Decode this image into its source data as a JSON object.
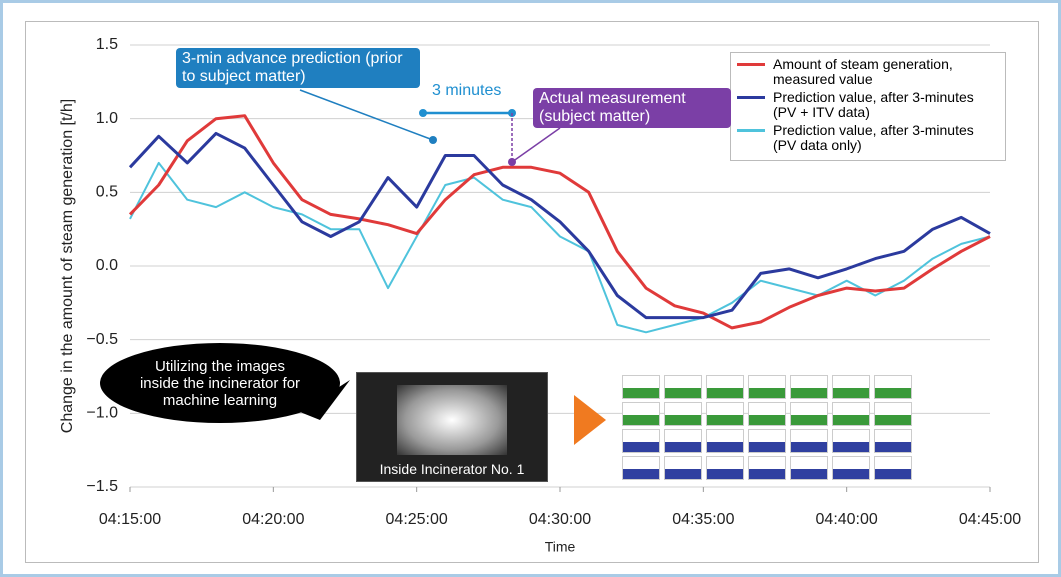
{
  "chart_data": {
    "type": "line",
    "y_label": "Change in the amount of steam generation [t/h]",
    "x_label": "Time",
    "x": [
      "04:15:00",
      "04:16:00",
      "04:17:00",
      "04:18:00",
      "04:19:00",
      "04:20:00",
      "04:21:00",
      "04:22:00",
      "04:23:00",
      "04:24:00",
      "04:25:00",
      "04:26:00",
      "04:27:00",
      "04:28:00",
      "04:29:00",
      "04:30:00",
      "04:31:00",
      "04:32:00",
      "04:33:00",
      "04:34:00",
      "04:35:00",
      "04:36:00",
      "04:37:00",
      "04:38:00",
      "04:39:00",
      "04:40:00",
      "04:41:00",
      "04:42:00",
      "04:43:00",
      "04:44:00",
      "04:45:00"
    ],
    "series": [
      {
        "name": "Amount of steam generation, measured value",
        "color": "#e03a3a",
        "values": [
          0.35,
          0.55,
          0.85,
          1.0,
          1.02,
          0.7,
          0.45,
          0.35,
          0.32,
          0.28,
          0.22,
          0.45,
          0.62,
          0.67,
          0.67,
          0.63,
          0.5,
          0.1,
          -0.15,
          -0.27,
          -0.32,
          -0.42,
          -0.38,
          -0.28,
          -0.2,
          -0.15,
          -0.17,
          -0.15,
          -0.02,
          0.1,
          0.2
        ]
      },
      {
        "name": "Prediction value, after 3-minutes (PV + ITV data)",
        "color": "#2b3a9e",
        "values": [
          0.67,
          0.88,
          0.7,
          0.9,
          0.8,
          0.55,
          0.3,
          0.2,
          0.3,
          0.6,
          0.4,
          0.75,
          0.75,
          0.55,
          0.45,
          0.3,
          0.1,
          -0.2,
          -0.35,
          -0.35,
          -0.35,
          -0.3,
          -0.05,
          -0.02,
          -0.08,
          -0.02,
          0.05,
          0.1,
          0.25,
          0.33,
          0.22
        ]
      },
      {
        "name": "Prediction value, after 3-minutes (PV data only)",
        "color": "#4fc3dc",
        "values": [
          0.32,
          0.7,
          0.45,
          0.4,
          0.5,
          0.4,
          0.35,
          0.25,
          0.25,
          -0.15,
          0.2,
          0.55,
          0.6,
          0.45,
          0.4,
          0.2,
          0.1,
          -0.4,
          -0.45,
          -0.4,
          -0.35,
          -0.25,
          -0.1,
          -0.15,
          -0.2,
          -0.1,
          -0.2,
          -0.1,
          0.05,
          0.15,
          0.2
        ]
      }
    ],
    "xlim": [
      "04:15:00",
      "04:45:00"
    ],
    "xticks": [
      "04:15:00",
      "04:20:00",
      "04:25:00",
      "04:30:00",
      "04:35:00",
      "04:40:00",
      "04:45:00"
    ],
    "ylim": [
      -1.5,
      1.5
    ],
    "yticks": [
      -1.5,
      -1.0,
      -0.5,
      0.0,
      0.5,
      1.0,
      1.5
    ],
    "ytick_labels": [
      "−1.5",
      "−1.0",
      "−0.5",
      "0.0",
      "0.5",
      "1.0",
      "1.5"
    ],
    "grid": true,
    "annotations": {
      "advance": "3-min advance prediction (prior to subject matter)",
      "actual": "Actual measurement (subject matter)",
      "interval": "3 minutes",
      "bubble": "Utilizing the images inside the incinerator for machine learning",
      "image_caption": "Inside Incinerator No. 1"
    }
  }
}
